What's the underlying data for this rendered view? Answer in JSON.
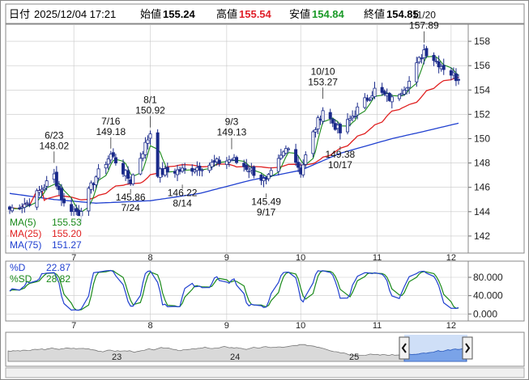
{
  "header": {
    "date_label": "日付",
    "datetime": "2025/12/04 17:21",
    "open_label": "始値",
    "open": "155.24",
    "high_label": "高値",
    "high": "155.54",
    "low_label": "安値",
    "low": "154.84",
    "close_label": "終値",
    "close": "154.85"
  },
  "colors": {
    "high": "#e0202a",
    "low": "#1a9a28",
    "ma5": "#1a8a1a",
    "ma25": "#e02020",
    "ma75": "#2040d0",
    "candle_up": "#ffffff",
    "candle_down": "#1a2a8a",
    "pctD": "#2040d0",
    "pctSD": "#1a8a1a",
    "navigator_fill": "#a8c4f0"
  },
  "legend": [
    {
      "label": "MA(5)",
      "value": "155.53",
      "color_key": "ma5"
    },
    {
      "label": "MA(25)",
      "value": "155.20",
      "color_key": "ma25"
    },
    {
      "label": "MA(75)",
      "value": "151.27",
      "color_key": "ma75"
    }
  ],
  "osc_legend": [
    {
      "label": "%D",
      "value": "22.87",
      "color_key": "pctD"
    },
    {
      "label": "%SD",
      "value": "28.82",
      "color_key": "pctSD"
    }
  ],
  "navigator": {
    "labels": [
      "23",
      "24",
      "25"
    ],
    "left_handle_icon": "chevron-left-icon",
    "right_handle_icon": "chevron-right-icon"
  },
  "chart_data": [
    {
      "type": "candlestick",
      "title": "",
      "x_tick_labels": [
        "7",
        "8",
        "9",
        "10",
        "11",
        "12"
      ],
      "y_tick_labels": [
        "142",
        "144",
        "146",
        "148",
        "150",
        "152",
        "154",
        "156",
        "158"
      ],
      "ylim": [
        140.6,
        159.4
      ],
      "grid": true,
      "legend_position": "bottom-left",
      "annotations": [
        {
          "date": "6/23",
          "value": "148.02",
          "kind": "high"
        },
        {
          "date": "7/16",
          "value": "149.18",
          "kind": "high"
        },
        {
          "date": "7/24",
          "value": "145.86",
          "kind": "low"
        },
        {
          "date": "8/1",
          "value": "150.92",
          "kind": "high"
        },
        {
          "date": "8/14",
          "value": "146.22",
          "kind": "low"
        },
        {
          "date": "9/3",
          "value": "149.13",
          "kind": "high"
        },
        {
          "date": "9/17",
          "value": "145.49",
          "kind": "low"
        },
        {
          "date": "10/10",
          "value": "153.27",
          "kind": "high"
        },
        {
          "date": "10/17",
          "value": "149.38",
          "kind": "low"
        },
        {
          "date": "11/20",
          "value": "157.89",
          "kind": "high"
        }
      ],
      "price_path": [
        [
          "6/5",
          144.2
        ],
        [
          "6/13",
          144.8
        ],
        [
          "6/23",
          147.0
        ],
        [
          "6/27",
          144.6
        ],
        [
          "7/3",
          143.9
        ],
        [
          "7/10",
          146.9
        ],
        [
          "7/16",
          148.7
        ],
        [
          "7/24",
          146.5
        ],
        [
          "8/1",
          150.5
        ],
        [
          "8/4",
          147.2
        ],
        [
          "8/14",
          147.4
        ],
        [
          "8/21",
          147.7
        ],
        [
          "9/3",
          148.3
        ],
        [
          "9/11",
          147.4
        ],
        [
          "9/17",
          146.4
        ],
        [
          "9/26",
          149.5
        ],
        [
          "10/1",
          147.3
        ],
        [
          "10/6",
          150.4
        ],
        [
          "10/10",
          152.4
        ],
        [
          "10/17",
          150.5
        ],
        [
          "10/24",
          152.4
        ],
        [
          "10/31",
          154.0
        ],
        [
          "11/7",
          153.2
        ],
        [
          "11/14",
          154.7
        ],
        [
          "11/20",
          157.3
        ],
        [
          "11/26",
          156.2
        ],
        [
          "12/4",
          154.85
        ]
      ],
      "ma75_path": [
        [
          "6/5",
          145.5
        ],
        [
          "6/23",
          145.0
        ],
        [
          "7/10",
          144.7
        ],
        [
          "8/1",
          144.9
        ],
        [
          "8/21",
          145.5
        ],
        [
          "9/11",
          146.6
        ],
        [
          "10/1",
          147.4
        ],
        [
          "10/17",
          148.8
        ],
        [
          "11/7",
          150.0
        ],
        [
          "11/20",
          150.6
        ],
        [
          "12/4",
          151.27
        ]
      ]
    },
    {
      "type": "line",
      "title": "",
      "y_tick_labels": [
        "0.000",
        "40.000",
        "80.000"
      ],
      "ylim": [
        -10,
        110
      ],
      "grid": true,
      "series": [
        {
          "name": "%D"
        },
        {
          "name": "%SD"
        }
      ]
    }
  ]
}
